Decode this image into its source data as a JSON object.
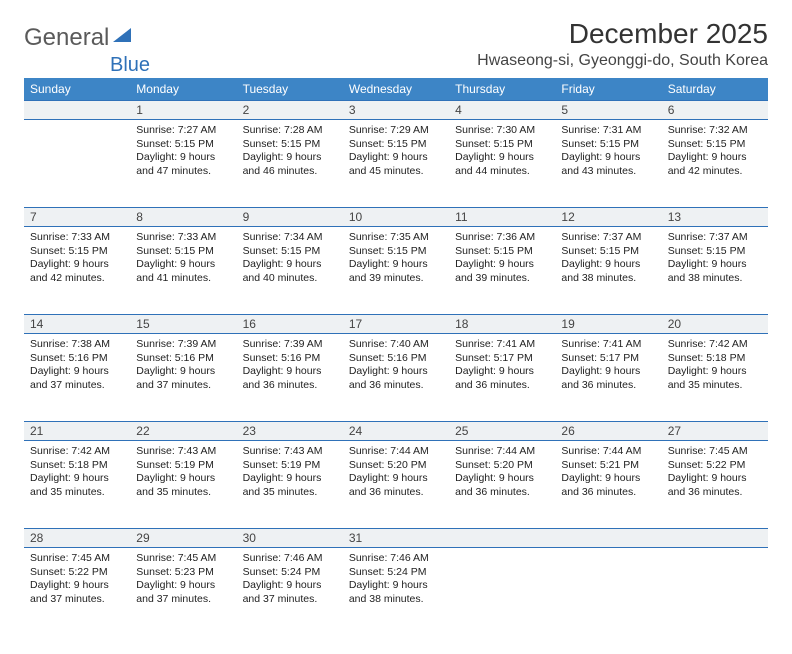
{
  "logo": {
    "text1": "General",
    "text2": "Blue"
  },
  "title": "December 2025",
  "location": "Hwaseong-si, Gyeonggi-do, South Korea",
  "colors": {
    "header_bg": "#3d85c6",
    "header_text": "#ffffff",
    "border": "#2f71b8",
    "daynum_bg": "#eef1f3",
    "logo_gray": "#5a5a5a",
    "logo_blue": "#2f71b8"
  },
  "weekdays": [
    "Sunday",
    "Monday",
    "Tuesday",
    "Wednesday",
    "Thursday",
    "Friday",
    "Saturday"
  ],
  "weeks": [
    [
      null,
      {
        "n": "1",
        "sr": "7:27 AM",
        "ss": "5:15 PM",
        "dl": "9 hours and 47 minutes."
      },
      {
        "n": "2",
        "sr": "7:28 AM",
        "ss": "5:15 PM",
        "dl": "9 hours and 46 minutes."
      },
      {
        "n": "3",
        "sr": "7:29 AM",
        "ss": "5:15 PM",
        "dl": "9 hours and 45 minutes."
      },
      {
        "n": "4",
        "sr": "7:30 AM",
        "ss": "5:15 PM",
        "dl": "9 hours and 44 minutes."
      },
      {
        "n": "5",
        "sr": "7:31 AM",
        "ss": "5:15 PM",
        "dl": "9 hours and 43 minutes."
      },
      {
        "n": "6",
        "sr": "7:32 AM",
        "ss": "5:15 PM",
        "dl": "9 hours and 42 minutes."
      }
    ],
    [
      {
        "n": "7",
        "sr": "7:33 AM",
        "ss": "5:15 PM",
        "dl": "9 hours and 42 minutes."
      },
      {
        "n": "8",
        "sr": "7:33 AM",
        "ss": "5:15 PM",
        "dl": "9 hours and 41 minutes."
      },
      {
        "n": "9",
        "sr": "7:34 AM",
        "ss": "5:15 PM",
        "dl": "9 hours and 40 minutes."
      },
      {
        "n": "10",
        "sr": "7:35 AM",
        "ss": "5:15 PM",
        "dl": "9 hours and 39 minutes."
      },
      {
        "n": "11",
        "sr": "7:36 AM",
        "ss": "5:15 PM",
        "dl": "9 hours and 39 minutes."
      },
      {
        "n": "12",
        "sr": "7:37 AM",
        "ss": "5:15 PM",
        "dl": "9 hours and 38 minutes."
      },
      {
        "n": "13",
        "sr": "7:37 AM",
        "ss": "5:15 PM",
        "dl": "9 hours and 38 minutes."
      }
    ],
    [
      {
        "n": "14",
        "sr": "7:38 AM",
        "ss": "5:16 PM",
        "dl": "9 hours and 37 minutes."
      },
      {
        "n": "15",
        "sr": "7:39 AM",
        "ss": "5:16 PM",
        "dl": "9 hours and 37 minutes."
      },
      {
        "n": "16",
        "sr": "7:39 AM",
        "ss": "5:16 PM",
        "dl": "9 hours and 36 minutes."
      },
      {
        "n": "17",
        "sr": "7:40 AM",
        "ss": "5:16 PM",
        "dl": "9 hours and 36 minutes."
      },
      {
        "n": "18",
        "sr": "7:41 AM",
        "ss": "5:17 PM",
        "dl": "9 hours and 36 minutes."
      },
      {
        "n": "19",
        "sr": "7:41 AM",
        "ss": "5:17 PM",
        "dl": "9 hours and 36 minutes."
      },
      {
        "n": "20",
        "sr": "7:42 AM",
        "ss": "5:18 PM",
        "dl": "9 hours and 35 minutes."
      }
    ],
    [
      {
        "n": "21",
        "sr": "7:42 AM",
        "ss": "5:18 PM",
        "dl": "9 hours and 35 minutes."
      },
      {
        "n": "22",
        "sr": "7:43 AM",
        "ss": "5:19 PM",
        "dl": "9 hours and 35 minutes."
      },
      {
        "n": "23",
        "sr": "7:43 AM",
        "ss": "5:19 PM",
        "dl": "9 hours and 35 minutes."
      },
      {
        "n": "24",
        "sr": "7:44 AM",
        "ss": "5:20 PM",
        "dl": "9 hours and 36 minutes."
      },
      {
        "n": "25",
        "sr": "7:44 AM",
        "ss": "5:20 PM",
        "dl": "9 hours and 36 minutes."
      },
      {
        "n": "26",
        "sr": "7:44 AM",
        "ss": "5:21 PM",
        "dl": "9 hours and 36 minutes."
      },
      {
        "n": "27",
        "sr": "7:45 AM",
        "ss": "5:22 PM",
        "dl": "9 hours and 36 minutes."
      }
    ],
    [
      {
        "n": "28",
        "sr": "7:45 AM",
        "ss": "5:22 PM",
        "dl": "9 hours and 37 minutes."
      },
      {
        "n": "29",
        "sr": "7:45 AM",
        "ss": "5:23 PM",
        "dl": "9 hours and 37 minutes."
      },
      {
        "n": "30",
        "sr": "7:46 AM",
        "ss": "5:24 PM",
        "dl": "9 hours and 37 minutes."
      },
      {
        "n": "31",
        "sr": "7:46 AM",
        "ss": "5:24 PM",
        "dl": "9 hours and 38 minutes."
      },
      null,
      null,
      null
    ]
  ],
  "labels": {
    "sunrise": "Sunrise:",
    "sunset": "Sunset:",
    "daylight": "Daylight:"
  }
}
